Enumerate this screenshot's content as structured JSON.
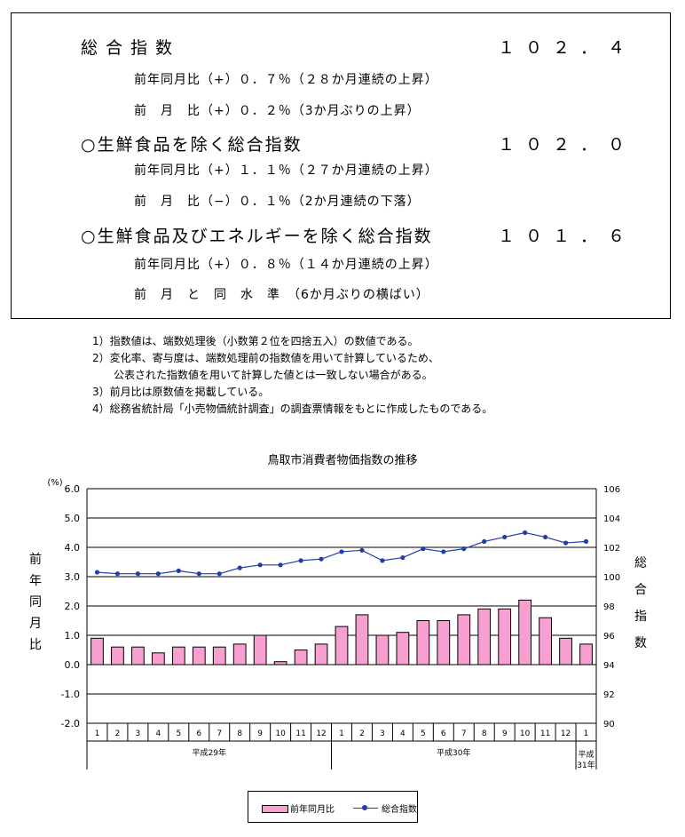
{
  "summary": {
    "headline": {
      "label": "総合指数",
      "value": "１０２．４"
    },
    "headline_yoy": "前年同月比（+）０．７％（２８か月連続の上昇）",
    "headline_mom": "前　月　比（+）０．２％（3か月ぶりの上昇）",
    "core": {
      "label": "○生鮮食品を除く総合指数",
      "value": "１０２．０"
    },
    "core_yoy": "前年同月比（+）１．１％（２７か月連続の上昇）",
    "core_mom": "前　月　比（−）０．１％（2か月連続の下落）",
    "corecore": {
      "label": "○生鮮食品及びエネルギーを除く総合指数",
      "value": "１０１．６"
    },
    "corecore_yoy": "前年同月比（+）０．８％（１４か月連続の上昇）",
    "corecore_mom": "前　月　と　同　水　準　（6か月ぶりの横ばい）"
  },
  "notes": [
    "1）指数値は、端数処理後（小数第２位を四捨五入）の数値である。",
    "2）変化率、寄与度は、端数処理前の指数値を用いて計算しているため、",
    "　　公表された指数値を用いて計算した値とは一致しない場合がある。",
    "3）前月比は原数値を掲載している。",
    "4）総務省統計局「小売物価統計調査」の調査票情報をもとに作成したものである。"
  ],
  "chart_data": {
    "type": "bar",
    "title": "鳥取市消費者物価指数の推移",
    "unit_label": "(%)",
    "ylabel_left": "前年同月比",
    "ylabel_right": "総合指数",
    "categories": [
      "1",
      "2",
      "3",
      "4",
      "5",
      "6",
      "7",
      "8",
      "9",
      "10",
      "11",
      "12",
      "1",
      "2",
      "3",
      "4",
      "5",
      "6",
      "7",
      "8",
      "9",
      "10",
      "11",
      "12",
      "1"
    ],
    "year_groups": [
      {
        "label": "平成29年",
        "start": 0,
        "count": 12
      },
      {
        "label": "平成30年",
        "start": 12,
        "count": 12
      },
      {
        "label": "平成31年",
        "start": 24,
        "count": 1
      }
    ],
    "ylim_left": [
      -2.0,
      6.0
    ],
    "yticks_left": [
      "6.0",
      "5.0",
      "4.0",
      "3.0",
      "2.0",
      "1.0",
      "0.0",
      "-1.0",
      "-2.0"
    ],
    "ylim_right": [
      90,
      106
    ],
    "yticks_right": [
      "106",
      "104",
      "102",
      "100",
      "98",
      "96",
      "94",
      "92",
      "90"
    ],
    "grid": true,
    "legend_position": "bottom",
    "series": [
      {
        "name": "前年同月比",
        "kind": "bar",
        "axis": "left",
        "color": "#f79fd0",
        "values": [
          0.9,
          0.6,
          0.6,
          0.4,
          0.6,
          0.6,
          0.6,
          0.7,
          1.0,
          0.1,
          0.5,
          0.7,
          1.3,
          1.7,
          1.0,
          1.1,
          1.5,
          1.5,
          1.7,
          1.9,
          1.9,
          2.2,
          1.6,
          0.9,
          0.7
        ]
      },
      {
        "name": "総合指数",
        "kind": "line",
        "axis": "right",
        "color": "#1f3ea8",
        "values": [
          100.3,
          100.2,
          100.2,
          100.2,
          100.4,
          100.2,
          100.2,
          100.6,
          100.8,
          100.8,
          101.1,
          101.2,
          101.7,
          101.8,
          101.1,
          101.3,
          101.9,
          101.7,
          101.9,
          102.4,
          102.7,
          103.0,
          102.7,
          102.3,
          102.4
        ]
      }
    ]
  }
}
